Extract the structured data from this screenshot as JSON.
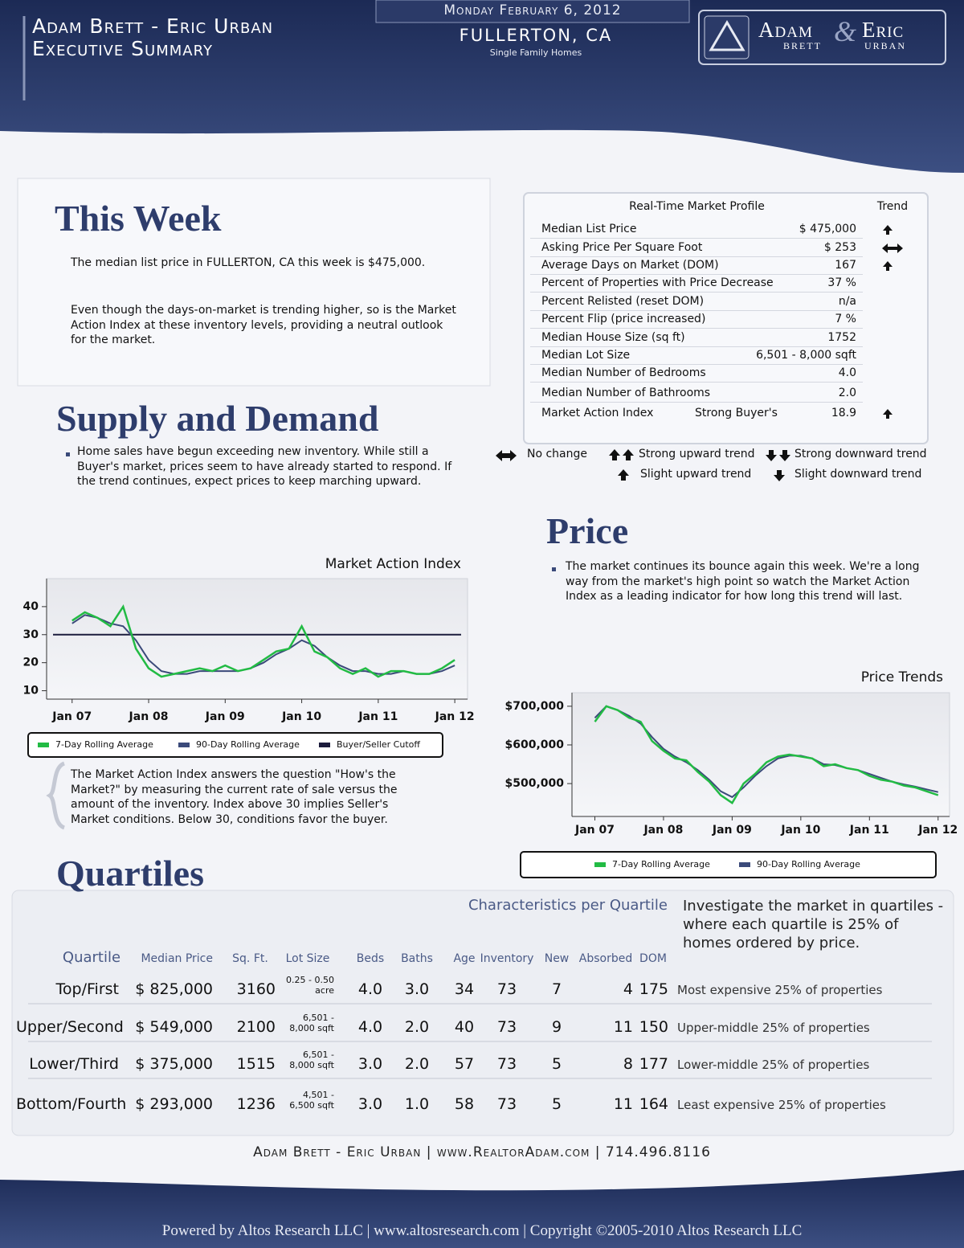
{
  "header": {
    "title_line1": "Adam Brett - Eric Urban",
    "title_line2": "Executive Summary",
    "date": "Monday February 6, 2012",
    "location": "FULLERTON, CA",
    "property_type": "Single Family Homes",
    "logo": {
      "name1": "Adam",
      "amp": "&",
      "name2": "Eric",
      "sub1": "BRETT",
      "sub2": "URBAN"
    }
  },
  "this_week": {
    "heading": "This Week",
    "paragraphs": [
      "The median list price in FULLERTON, CA this week is $475,000.",
      "Even though the days-on-market is trending higher, so is the Market Action Index at these inventory levels, providing a neutral outlook for the market."
    ]
  },
  "market_profile": {
    "title": "Real-Time Market Profile",
    "trend_header": "Trend",
    "rows": [
      {
        "label": "Median List Price",
        "value": "$ 475,000"
      },
      {
        "label": "Asking Price Per Square Foot",
        "value": "$ 253"
      },
      {
        "label": "Average Days on Market (DOM)",
        "value": "167"
      },
      {
        "label": "Percent of Properties with Price Decrease",
        "value": "37 %"
      },
      {
        "label": "Percent Relisted (reset DOM)",
        "value": "n/a"
      },
      {
        "label": "Percent Flip (price increased)",
        "value": "7 %"
      },
      {
        "label": "Median House Size (sq ft)",
        "value": "1752"
      },
      {
        "label": "Median Lot Size",
        "value": "6,501 - 8,000 sqft"
      },
      {
        "label": "Median Number of Bedrooms",
        "value": "4.0"
      },
      {
        "label": "Median Number of Bathrooms",
        "value": "2.0"
      }
    ],
    "index_row": {
      "label": "Market Action Index",
      "status": "Strong Buyer's",
      "value": "18.9"
    }
  },
  "trend_legend": [
    "No change",
    "Strong upward trend",
    "Strong downward trend",
    "Slight upward trend",
    "Slight downward trend"
  ],
  "supply_demand": {
    "heading": "Supply and Demand",
    "text": "Home sales have begun exceeding new inventory.  While still a Buyer's market, prices seem to have already started to respond.  If the trend continues, expect prices to keep marching upward."
  },
  "mai_note": "The Market Action Index answers the question \"How's the Market?\" by measuring the current rate of sale versus the amount of the inventory.  Index above 30 implies Seller's Market conditions. Below 30, conditions favor the buyer.",
  "price": {
    "heading": "Price",
    "text": "The market continues its bounce again this week. We're a long way from the market's high point so watch the Market Action Index as a leading indicator for how long this trend will last."
  },
  "quartiles": {
    "heading": "Quartiles",
    "subtitle": "Characteristics per Quartile",
    "note": "Investigate the market in quartiles - where each quartile is 25% of homes ordered by price.",
    "columns": [
      "Quartile",
      "Median Price",
      "Sq. Ft.",
      "Lot Size",
      "Beds",
      "Baths",
      "Age",
      "Inventory",
      "New",
      "Absorbed",
      "DOM"
    ],
    "rows": [
      [
        "Top/First",
        "$ 825,000",
        "3160",
        "0.25 - 0.50 acre",
        "4.0",
        "3.0",
        "34",
        "73",
        "7",
        "4",
        "175",
        "Most expensive 25% of properties"
      ],
      [
        "Upper/Second",
        "$ 549,000",
        "2100",
        "6,501 - 8,000 sqft",
        "4.0",
        "2.0",
        "40",
        "73",
        "9",
        "11",
        "150",
        "Upper-middle 25% of properties"
      ],
      [
        "Lower/Third",
        "$ 375,000",
        "1515",
        "6,501 - 8,000 sqft",
        "3.0",
        "2.0",
        "57",
        "73",
        "5",
        "8",
        "177",
        "Lower-middle 25% of properties"
      ],
      [
        "Bottom/Fourth",
        "$ 293,000",
        "1236",
        "4,501 - 6,500 sqft",
        "3.0",
        "1.0",
        "58",
        "73",
        "5",
        "11",
        "164",
        "Least expensive 25% of properties"
      ]
    ]
  },
  "footer": {
    "contact": "Adam Brett - Eric Urban | www.RealtorAdam.com | 714.496.8116",
    "powered": "Powered by Altos Research LLC | www.altosresearch.com | Copyright ©2005-2010 Altos Research LLC"
  },
  "chart_data": [
    {
      "type": "line",
      "title": "Market Action Index",
      "x": [
        "2007-01",
        "2007-03",
        "2007-05",
        "2007-07",
        "2007-09",
        "2007-11",
        "2008-01",
        "2008-03",
        "2008-05",
        "2008-07",
        "2008-09",
        "2008-11",
        "2009-01",
        "2009-03",
        "2009-05",
        "2009-07",
        "2009-09",
        "2009-11",
        "2010-01",
        "2010-03",
        "2010-05",
        "2010-07",
        "2010-09",
        "2010-11",
        "2011-01",
        "2011-03",
        "2011-05",
        "2011-07",
        "2011-09",
        "2011-11",
        "2012-01"
      ],
      "series": [
        {
          "name": "7-Day Rolling Average",
          "color": "#22bb44",
          "values": [
            35,
            38,
            36,
            33,
            40,
            25,
            18,
            15,
            16,
            17,
            18,
            17,
            19,
            17,
            18,
            21,
            24,
            25,
            33,
            24,
            22,
            18,
            16,
            18,
            15,
            17,
            17,
            16,
            16,
            18,
            21
          ]
        },
        {
          "name": "90-Day Rolling Average",
          "color": "#3b4a7a",
          "values": [
            34,
            37,
            36,
            34,
            33,
            28,
            21,
            17,
            16,
            16,
            17,
            17,
            17,
            17,
            18,
            20,
            23,
            25,
            28,
            26,
            22,
            19,
            17,
            17,
            16,
            16,
            17,
            16,
            16,
            17,
            19
          ]
        }
      ],
      "cutoff": {
        "name": "Buyer/Seller Cutoff",
        "color": "#1c1c3c",
        "value": 30
      },
      "xlim": [
        "2006-09",
        "2012-03"
      ],
      "ylim": [
        7,
        50
      ],
      "xticks": [
        {
          "value": "2007-01",
          "label": "Jan 07"
        },
        {
          "value": "2008-01",
          "label": "Jan 08"
        },
        {
          "value": "2009-01",
          "label": "Jan 09"
        },
        {
          "value": "2010-01",
          "label": "Jan 10"
        },
        {
          "value": "2011-01",
          "label": "Jan 11"
        },
        {
          "value": "2012-01",
          "label": "Jan 12"
        }
      ],
      "yticks": [
        10,
        20,
        30,
        40
      ]
    },
    {
      "type": "line",
      "title": "Price Trends",
      "x": [
        "2007-01",
        "2007-03",
        "2007-05",
        "2007-07",
        "2007-09",
        "2007-11",
        "2008-01",
        "2008-03",
        "2008-05",
        "2008-07",
        "2008-09",
        "2008-11",
        "2009-01",
        "2009-03",
        "2009-05",
        "2009-07",
        "2009-09",
        "2009-11",
        "2010-01",
        "2010-03",
        "2010-05",
        "2010-07",
        "2010-09",
        "2010-11",
        "2011-01",
        "2011-03",
        "2011-05",
        "2011-07",
        "2011-09",
        "2011-11",
        "2012-01"
      ],
      "series": [
        {
          "name": "7-Day Rolling Average",
          "color": "#22bb44",
          "values": [
            660000,
            700000,
            690000,
            670000,
            660000,
            610000,
            585000,
            565000,
            560000,
            530000,
            505000,
            470000,
            450000,
            500000,
            525000,
            555000,
            570000,
            575000,
            570000,
            565000,
            545000,
            550000,
            540000,
            535000,
            520000,
            510000,
            505000,
            495000,
            490000,
            480000,
            470000
          ]
        },
        {
          "name": "90-Day Rolling Average",
          "color": "#3b4a7a",
          "values": [
            670000,
            700000,
            690000,
            675000,
            655000,
            620000,
            590000,
            570000,
            555000,
            535000,
            510000,
            480000,
            465000,
            490000,
            520000,
            545000,
            565000,
            572000,
            572000,
            565000,
            550000,
            548000,
            540000,
            535000,
            525000,
            515000,
            505000,
            498000,
            492000,
            485000,
            478000
          ]
        }
      ],
      "xlim": [
        "2006-09",
        "2012-03"
      ],
      "ylim": [
        415000,
        735000
      ],
      "xticks": [
        {
          "value": "2007-01",
          "label": "Jan 07"
        },
        {
          "value": "2008-01",
          "label": "Jan 08"
        },
        {
          "value": "2009-01",
          "label": "Jan 09"
        },
        {
          "value": "2010-01",
          "label": "Jan 10"
        },
        {
          "value": "2011-01",
          "label": "Jan 11"
        },
        {
          "value": "2012-01",
          "label": "Jan 12"
        }
      ],
      "yticks": [
        {
          "value": 500000,
          "label": "$500,000"
        },
        {
          "value": 600000,
          "label": "$600,000"
        },
        {
          "value": 700000,
          "label": "$700,000"
        }
      ]
    }
  ]
}
